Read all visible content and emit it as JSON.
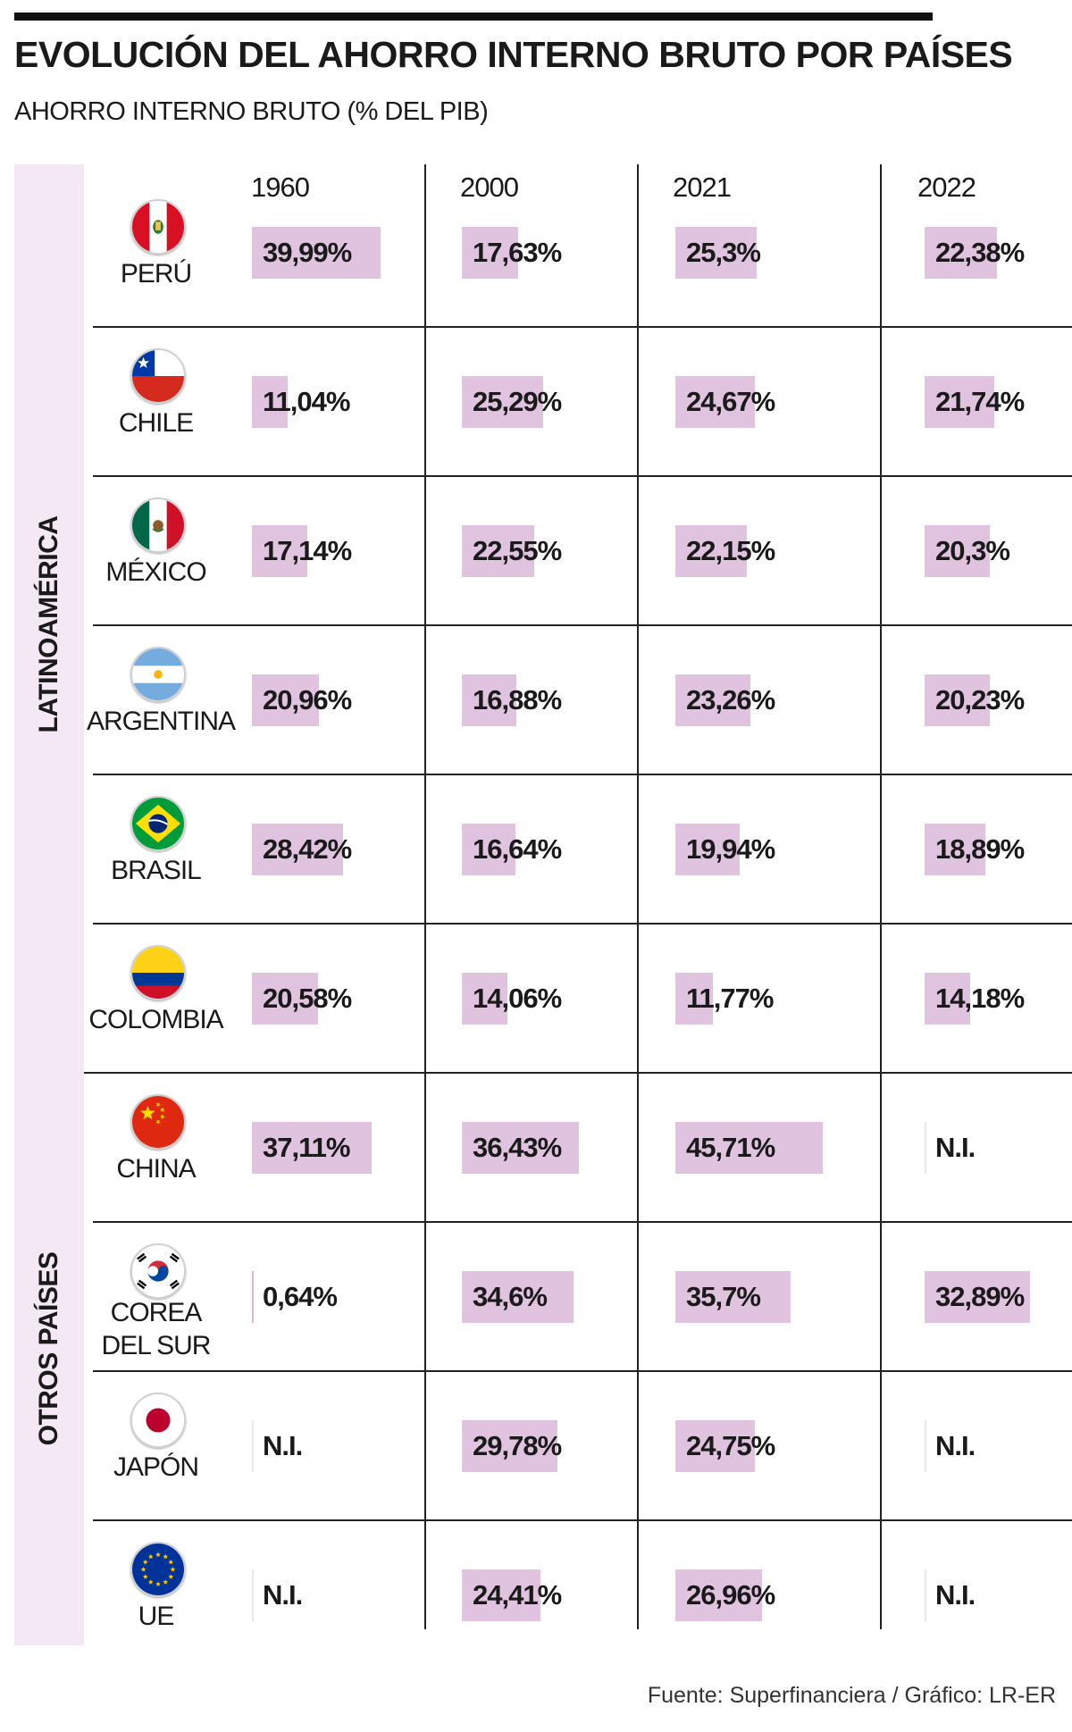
{
  "title": "EVOLUCIÓN DEL AHORRO INTERNO BRUTO POR PAÍSES",
  "subtitle": "AHORRO INTERNO BRUTO (% DEL PIB)",
  "source": "Fuente: Superfinanciera / Gráfico: LR-ER",
  "colors": {
    "bar": "#dfc3df",
    "group_band": "#f3e8f3",
    "text": "#1a1a1a"
  },
  "chart_data": {
    "type": "table",
    "title": "EVOLUCIÓN DEL AHORRO INTERNO BRUTO POR PAÍSES",
    "subtitle": "AHORRO INTERNO BRUTO (% DEL PIB)",
    "unit": "%",
    "years": [
      "1960",
      "2000",
      "2021",
      "2022"
    ],
    "groups": [
      {
        "label": "LATINOAMÉRICA",
        "countries": [
          {
            "name": "PERÚ",
            "flag": "peru-flag-icon",
            "labels": [
              "39,99%",
              "17,63%",
              "25,3%",
              "22,38%"
            ],
            "values": [
              39.99,
              17.63,
              25.3,
              22.38
            ]
          },
          {
            "name": "CHILE",
            "flag": "chile-flag-icon",
            "labels": [
              "11,04%",
              "25,29%",
              "24,67%",
              "21,74%"
            ],
            "values": [
              11.04,
              25.29,
              24.67,
              21.74
            ]
          },
          {
            "name": "MÉXICO",
            "flag": "mexico-flag-icon",
            "labels": [
              "17,14%",
              "22,55%",
              "22,15%",
              "20,3%"
            ],
            "values": [
              17.14,
              22.55,
              22.15,
              20.3
            ]
          },
          {
            "name": "ARGENTINA",
            "flag": "argentina-flag-icon",
            "labels": [
              "20,96%",
              "16,88%",
              "23,26%",
              "20,23%"
            ],
            "values": [
              20.96,
              16.88,
              23.26,
              20.23
            ]
          },
          {
            "name": "BRASIL",
            "flag": "brazil-flag-icon",
            "labels": [
              "28,42%",
              "16,64%",
              "19,94%",
              "18,89%"
            ],
            "values": [
              28.42,
              16.64,
              19.94,
              18.89
            ]
          },
          {
            "name": "COLOMBIA",
            "flag": "colombia-flag-icon",
            "labels": [
              "20,58%",
              "14,06%",
              "11,77%",
              "14,18%"
            ],
            "values": [
              20.58,
              14.06,
              11.77,
              14.18
            ]
          }
        ]
      },
      {
        "label": "OTROS PAÍSES",
        "countries": [
          {
            "name": "CHINA",
            "flag": "china-flag-icon",
            "labels": [
              "37,11%",
              "36,43%",
              "45,71%",
              "N.I."
            ],
            "values": [
              37.11,
              36.43,
              45.71,
              null
            ]
          },
          {
            "name": "COREA\nDEL SUR",
            "flag": "south-korea-flag-icon",
            "labels": [
              "0,64%",
              "34,6%",
              "35,7%",
              "32,89%"
            ],
            "values": [
              0.64,
              34.6,
              35.7,
              32.89
            ]
          },
          {
            "name": "JAPÓN",
            "flag": "japan-flag-icon",
            "labels": [
              "N.I.",
              "29,78%",
              "24,75%",
              "N.I."
            ],
            "values": [
              null,
              29.78,
              24.75,
              null
            ]
          },
          {
            "name": "UE",
            "flag": "eu-flag-icon",
            "labels": [
              "N.I.",
              "24,41%",
              "26,96%",
              "N.I."
            ],
            "values": [
              null,
              24.41,
              26.96,
              null
            ]
          }
        ]
      }
    ]
  }
}
